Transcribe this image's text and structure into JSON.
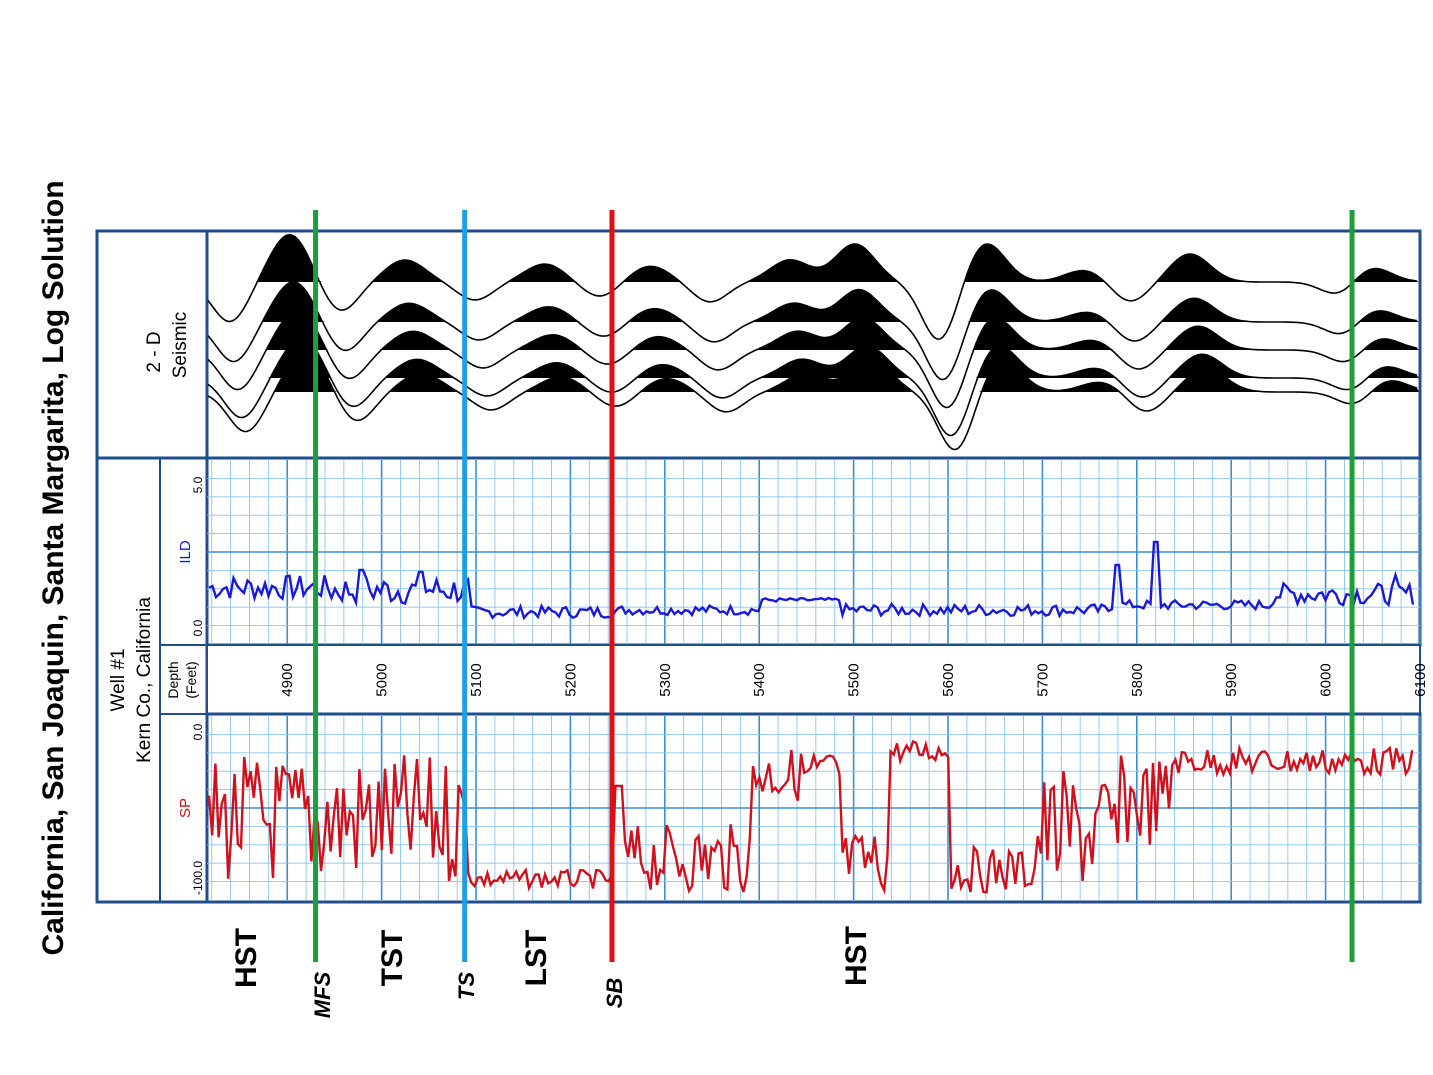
{
  "title": "California, San Joaquin, Santa Margarita, Log Solution",
  "well": {
    "name": "Well #1",
    "location": "Kern Co., California"
  },
  "tracks": {
    "seismic": {
      "line1": "2 - D",
      "line2": "Seismic"
    },
    "ild": {
      "label": "ILD",
      "scale_min": "0.0",
      "scale_max": "5.0",
      "color": "#1a1ad6"
    },
    "depth": {
      "line1": "Depth",
      "line2": "(Feet)"
    },
    "sp": {
      "label": "SP",
      "scale_min": "0.0",
      "scale_max": "-100.0",
      "color": "#d0101c"
    }
  },
  "depth_ticks": [
    "4900",
    "5000",
    "5100",
    "5200",
    "5300",
    "5400",
    "5500",
    "5600",
    "5700",
    "5800",
    "5900",
    "6000",
    "6100"
  ],
  "depth_range": [
    4815,
    6100
  ],
  "surfaces": [
    {
      "label": "MFS",
      "depth": 4930,
      "color": "#1e9e3a"
    },
    {
      "label": "TS",
      "depth": 5088,
      "color": "#1e9fe0"
    },
    {
      "label": "SB",
      "depth": 5244,
      "color": "#e01010"
    },
    {
      "label": "",
      "depth": 6028,
      "color": "#1e9e3a"
    }
  ],
  "systems_tracts": [
    "HST",
    "TST",
    "LST",
    "HST"
  ],
  "colors": {
    "frame": "#1f4e8c",
    "grid": "#3a8fd0",
    "grid_minor": "#8cc4ee",
    "seismic": "#000000"
  }
}
